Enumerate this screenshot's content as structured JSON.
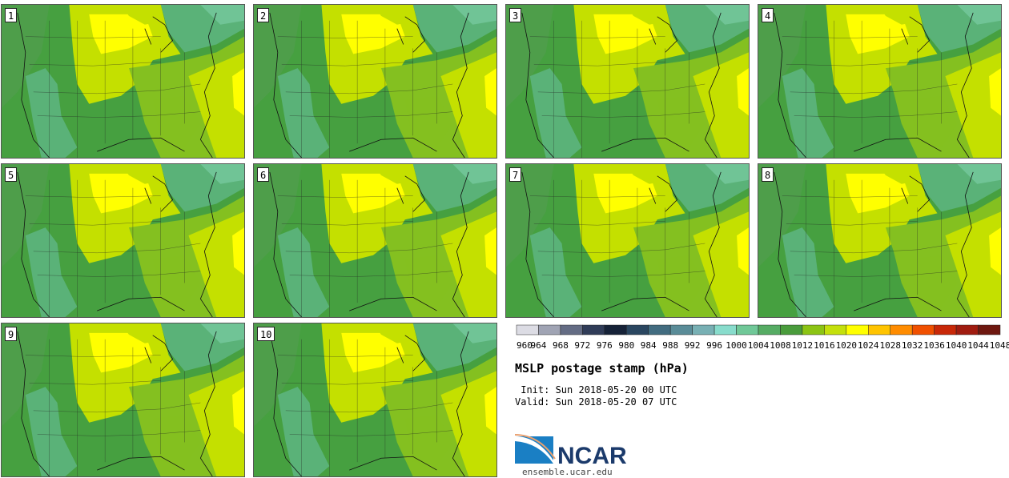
{
  "panels": [
    {
      "label": "1"
    },
    {
      "label": "2"
    },
    {
      "label": "3"
    },
    {
      "label": "4"
    },
    {
      "label": "5"
    },
    {
      "label": "6"
    },
    {
      "label": "7"
    },
    {
      "label": "8"
    },
    {
      "label": "9"
    },
    {
      "label": "10"
    }
  ],
  "colorbar": {
    "levels": [
      "960",
      "964",
      "968",
      "972",
      "976",
      "980",
      "984",
      "988",
      "992",
      "996",
      "1000",
      "1004",
      "1008",
      "1012",
      "1016",
      "1020",
      "1024",
      "1028",
      "1032",
      "1036",
      "1040",
      "1044",
      "1048"
    ],
    "colors": [
      "#dcdce4",
      "#a0a4b4",
      "#646c84",
      "#303c58",
      "#162238",
      "#2a4660",
      "#426c80",
      "#5a8c98",
      "#78b0b4",
      "#88dccc",
      "#70c898",
      "#56ac64",
      "#4a9c3c",
      "#8cc414",
      "#c4e00c",
      "#ffff00",
      "#ffc400",
      "#ff8c00",
      "#f05000",
      "#c82808",
      "#a01c10",
      "#6e1810"
    ]
  },
  "map_colors": {
    "ocean_dark": "#46a040",
    "low": "#5ab278",
    "mid": "#4e9e4a",
    "high_green": "#84c020",
    "yellow_green": "#c4e000",
    "yellow": "#ffff00",
    "pale": "#70c496"
  },
  "text": {
    "title": "MSLP postage stamp (hPa)",
    "init": " Init: Sun 2018-05-20 00 UTC",
    "valid": "Valid: Sun 2018-05-20 07 UTC",
    "logo_text": "NCAR",
    "url": "ensemble.ucar.edu"
  }
}
